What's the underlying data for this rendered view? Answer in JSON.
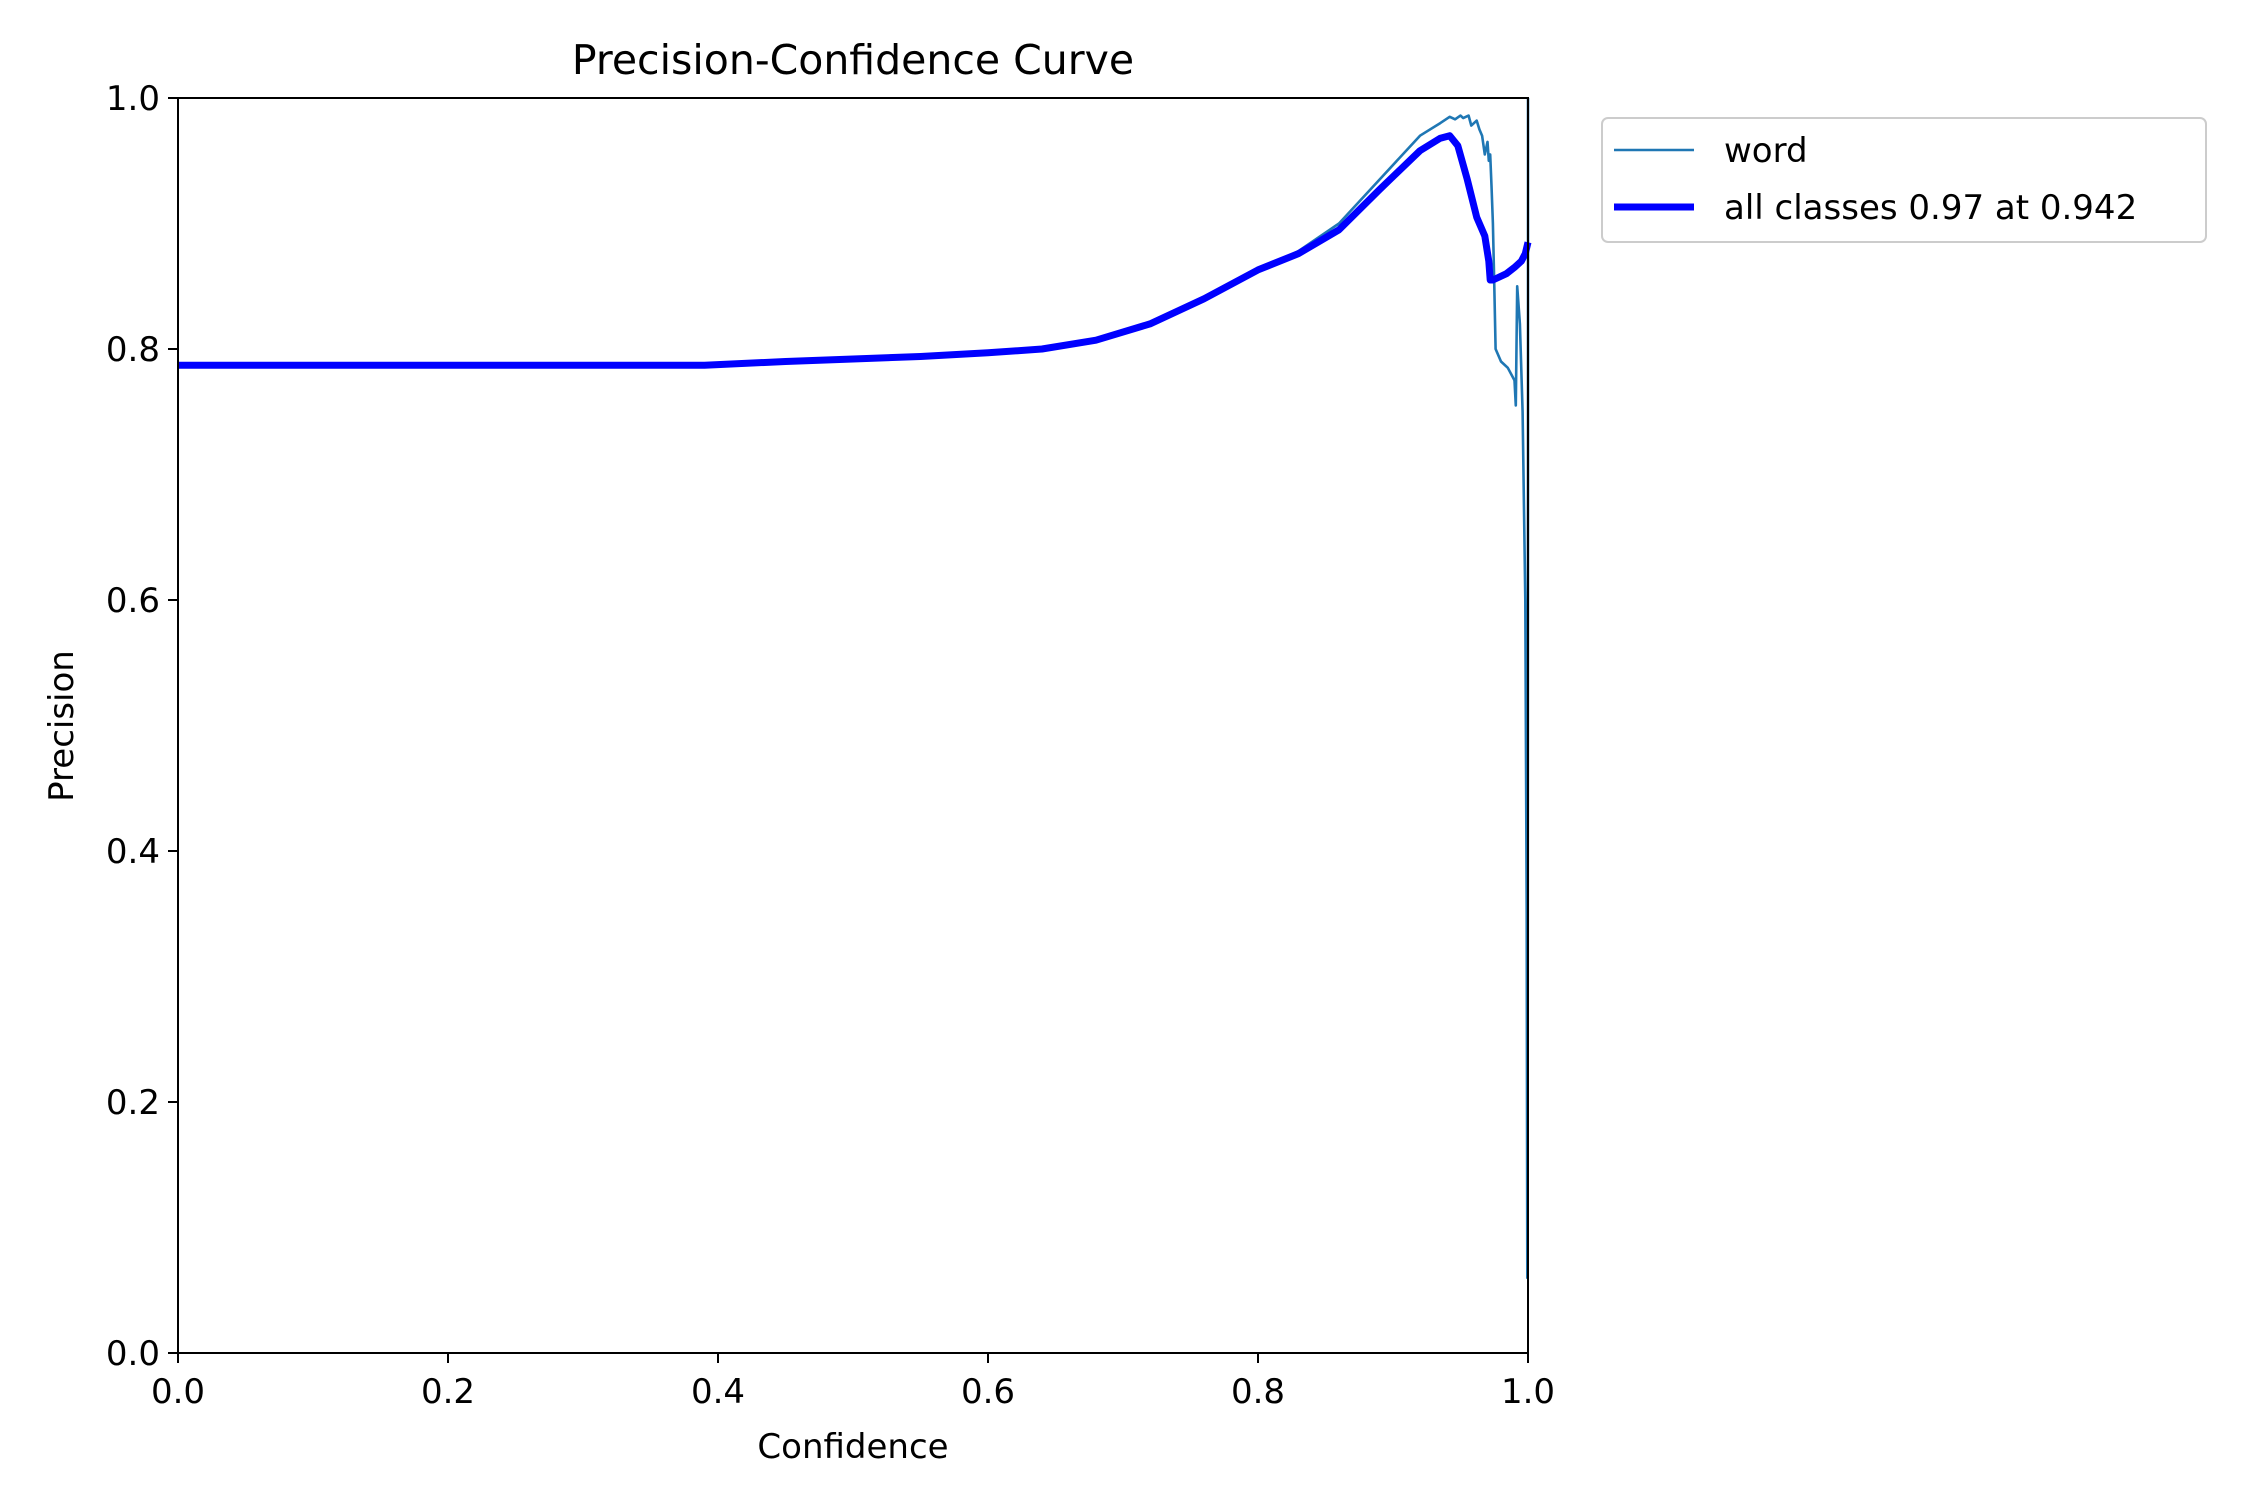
{
  "chart_data": {
    "type": "line",
    "title": "Precision-Confidence Curve",
    "xlabel": "Confidence",
    "ylabel": "Precision",
    "xlim": [
      0,
      1
    ],
    "ylim": [
      0,
      1
    ],
    "xticks": [
      0.0,
      0.2,
      0.4,
      0.6,
      0.8,
      1.0
    ],
    "xtick_labels": [
      "0.0",
      "0.2",
      "0.4",
      "0.6",
      "0.8",
      "1.0"
    ],
    "yticks": [
      0.0,
      0.2,
      0.4,
      0.6,
      0.8,
      1.0
    ],
    "ytick_labels": [
      "0.0",
      "0.2",
      "0.4",
      "0.6",
      "0.8",
      "1.0"
    ],
    "grid": false,
    "legend_position": "outside top-right",
    "series": [
      {
        "name": "word",
        "color": "#1f77b4",
        "linewidth": "thin",
        "x": [
          0.0,
          0.1,
          0.2,
          0.3,
          0.39,
          0.45,
          0.5,
          0.55,
          0.6,
          0.64,
          0.68,
          0.72,
          0.76,
          0.8,
          0.83,
          0.86,
          0.89,
          0.92,
          0.935,
          0.942,
          0.946,
          0.95,
          0.952,
          0.956,
          0.958,
          0.962,
          0.964,
          0.966,
          0.968,
          0.97,
          0.971,
          0.972,
          0.973,
          0.974,
          0.975,
          0.976,
          0.98,
          0.985,
          0.99,
          0.991,
          0.992,
          0.994,
          0.996,
          0.998,
          0.999,
          0.9995,
          0.9997,
          1.0,
          1.0
        ],
        "y": [
          0.787,
          0.787,
          0.787,
          0.787,
          0.787,
          0.79,
          0.792,
          0.794,
          0.797,
          0.8,
          0.807,
          0.82,
          0.84,
          0.863,
          0.878,
          0.9,
          0.935,
          0.97,
          0.98,
          0.985,
          0.983,
          0.986,
          0.984,
          0.986,
          0.978,
          0.982,
          0.975,
          0.97,
          0.955,
          0.965,
          0.95,
          0.955,
          0.93,
          0.9,
          0.85,
          0.8,
          0.79,
          0.785,
          0.775,
          0.755,
          0.85,
          0.82,
          0.75,
          0.6,
          0.35,
          0.06,
          0.06,
          0.7,
          1.0
        ]
      },
      {
        "name": "all classes 0.97 at 0.942",
        "color": "#0000ff",
        "linewidth": "thick",
        "x": [
          0.0,
          0.1,
          0.2,
          0.3,
          0.39,
          0.45,
          0.5,
          0.55,
          0.6,
          0.64,
          0.68,
          0.72,
          0.76,
          0.8,
          0.83,
          0.86,
          0.89,
          0.92,
          0.935,
          0.942,
          0.948,
          0.955,
          0.962,
          0.968,
          0.971,
          0.972,
          0.974,
          0.978,
          0.984,
          0.99,
          0.995,
          0.998,
          1.0
        ],
        "y": [
          0.787,
          0.787,
          0.787,
          0.787,
          0.787,
          0.79,
          0.792,
          0.794,
          0.797,
          0.8,
          0.807,
          0.82,
          0.84,
          0.863,
          0.876,
          0.895,
          0.927,
          0.958,
          0.968,
          0.97,
          0.962,
          0.935,
          0.905,
          0.89,
          0.87,
          0.855,
          0.855,
          0.857,
          0.86,
          0.865,
          0.87,
          0.876,
          0.885
        ]
      }
    ]
  }
}
